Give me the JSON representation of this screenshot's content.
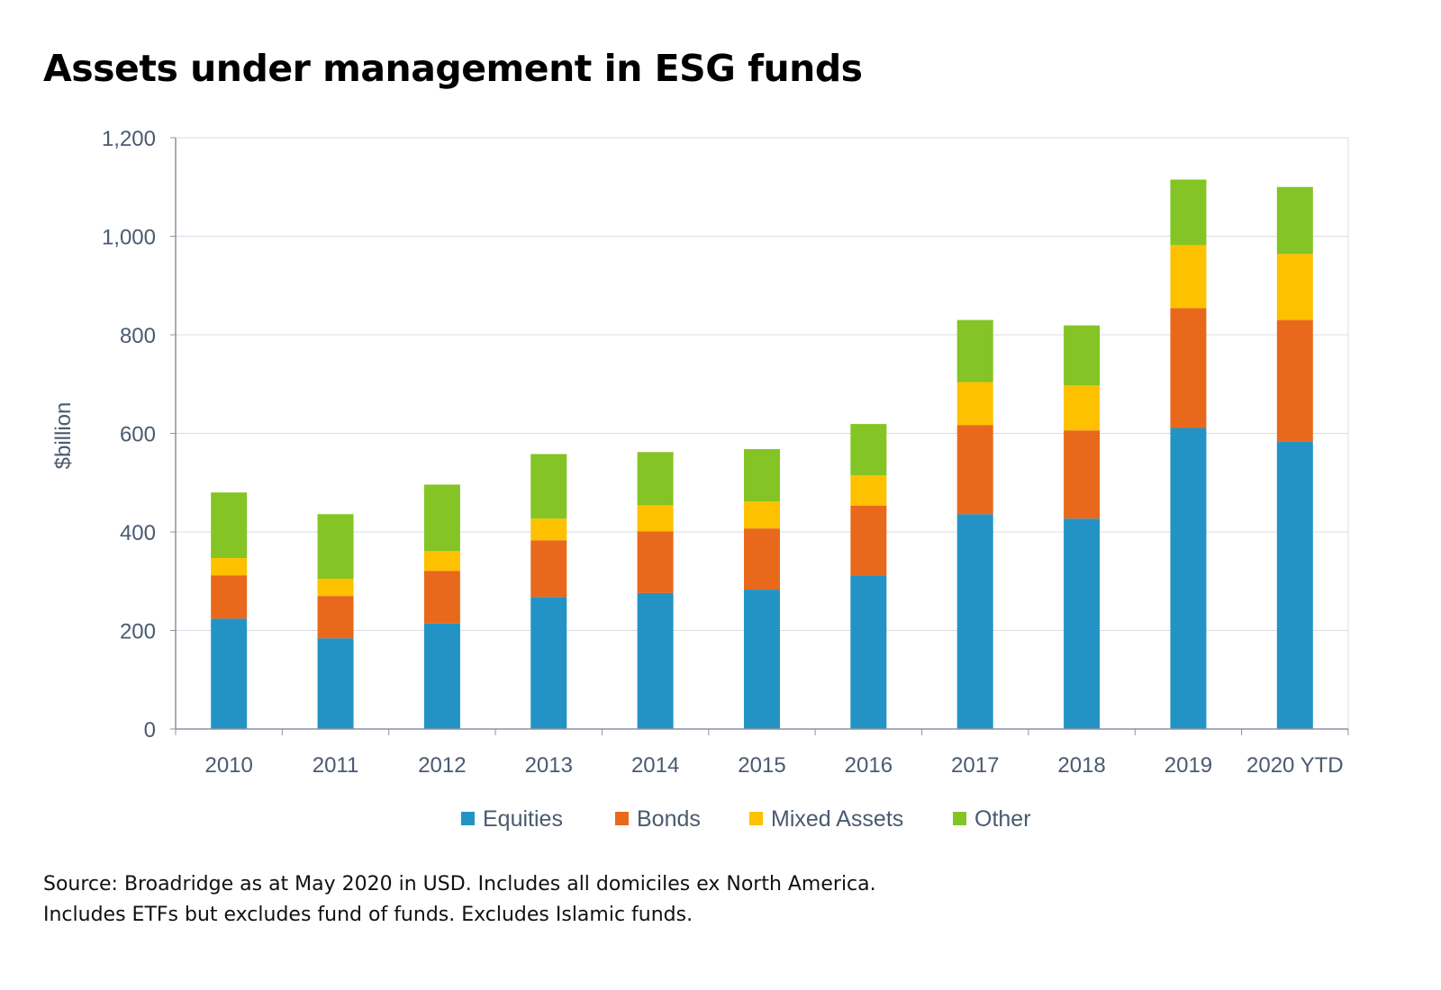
{
  "chart_data": {
    "type": "bar",
    "stacked": true,
    "title": "Assets under management in ESG funds",
    "xlabel": "",
    "ylabel": "$billion",
    "ylim": [
      0,
      1200
    ],
    "yticks": [
      "0",
      "200",
      "400",
      "600",
      "800",
      "1,000",
      "1,200"
    ],
    "ytick_values": [
      0,
      200,
      400,
      600,
      800,
      1000,
      1200
    ],
    "grid": true,
    "legend": "bottom",
    "categories": [
      "2010",
      "2011",
      "2012",
      "2013",
      "2014",
      "2015",
      "2016",
      "2017",
      "2018",
      "2019",
      "2020 YTD"
    ],
    "series": [
      {
        "name": "Equities",
        "color": "#2393c6",
        "values": [
          224,
          184,
          214,
          268,
          276,
          283,
          312,
          436,
          427,
          611,
          584
        ]
      },
      {
        "name": "Bonds",
        "color": "#e8691c",
        "values": [
          88,
          86,
          107,
          115,
          125,
          124,
          141,
          181,
          179,
          243,
          246
        ]
      },
      {
        "name": "Mixed Assets",
        "color": "#fdc100",
        "values": [
          35,
          35,
          40,
          44,
          53,
          55,
          62,
          87,
          91,
          128,
          134
        ]
      },
      {
        "name": "Other",
        "color": "#84c424",
        "values": [
          133,
          131,
          135,
          131,
          108,
          106,
          104,
          126,
          122,
          133,
          136
        ]
      }
    ]
  },
  "source": {
    "line1": "Source: Broadridge as at May 2020 in USD. Includes all domiciles ex North America.",
    "line2": "Includes ETFs but excludes fund of funds. Excludes Islamic funds."
  }
}
